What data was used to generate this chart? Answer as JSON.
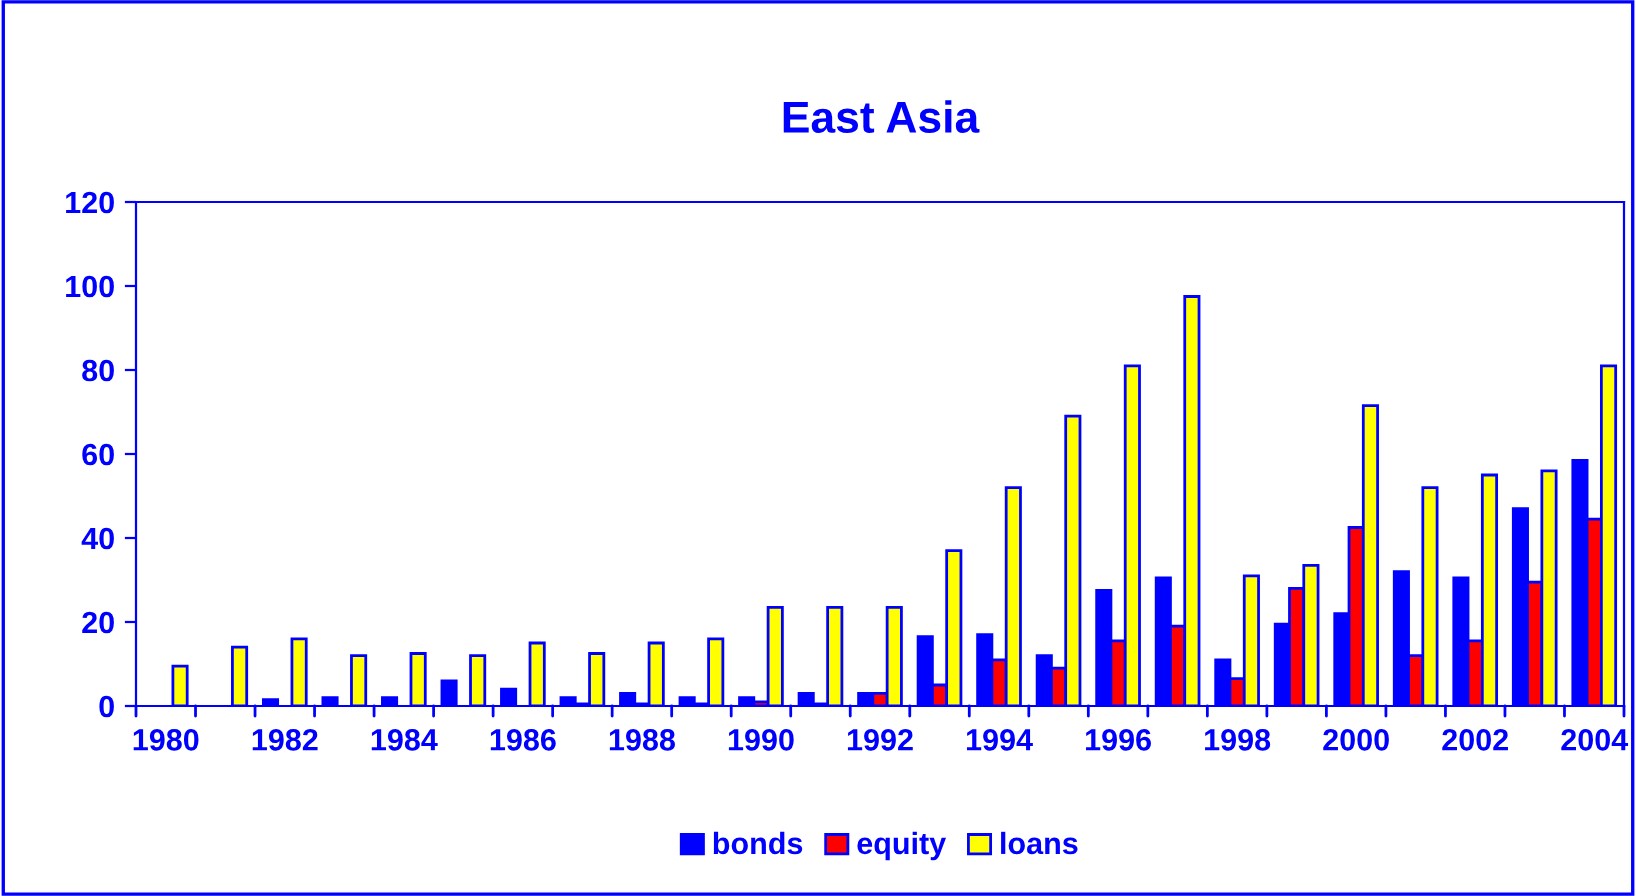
{
  "chart_data": {
    "type": "bar",
    "title": "East Asia",
    "categories": [
      "1980",
      null,
      "1982",
      null,
      "1984",
      null,
      "1986",
      null,
      "1988",
      null,
      "1990",
      null,
      "1992",
      null,
      "1994",
      null,
      "1996",
      null,
      "1998",
      null,
      "2000",
      null,
      "2002",
      null,
      "2004"
    ],
    "series": [
      {
        "name": "bonds",
        "color": "#0000ff",
        "values": [
          0,
          0,
          1.5,
          2,
          2,
          6,
          4,
          2,
          3,
          2,
          2,
          3,
          3,
          16.5,
          17,
          12,
          27.5,
          30.5,
          11,
          19.5,
          22,
          32,
          30.5,
          47,
          58.5
        ]
      },
      {
        "name": "equity",
        "color": "#ff0000",
        "values": [
          0,
          0,
          0,
          0,
          0,
          0,
          0,
          0.5,
          0.5,
          0.5,
          1,
          0.5,
          3,
          5,
          11,
          9,
          15.5,
          19,
          6.5,
          28,
          42.5,
          12,
          15.5,
          29.5,
          44.5
        ]
      },
      {
        "name": "loans",
        "color": "#ffff00",
        "values": [
          9.5,
          14,
          16,
          12,
          12.5,
          12,
          15,
          12.5,
          15,
          16,
          23.5,
          23.5,
          23.5,
          37,
          52,
          69,
          81,
          97.5,
          31,
          33.5,
          71.5,
          52,
          55,
          56,
          81
        ]
      }
    ],
    "ylim": [
      0,
      120
    ],
    "yticks": [
      0,
      20,
      40,
      60,
      80,
      100,
      120
    ],
    "grid": false,
    "legend": "bottom"
  }
}
